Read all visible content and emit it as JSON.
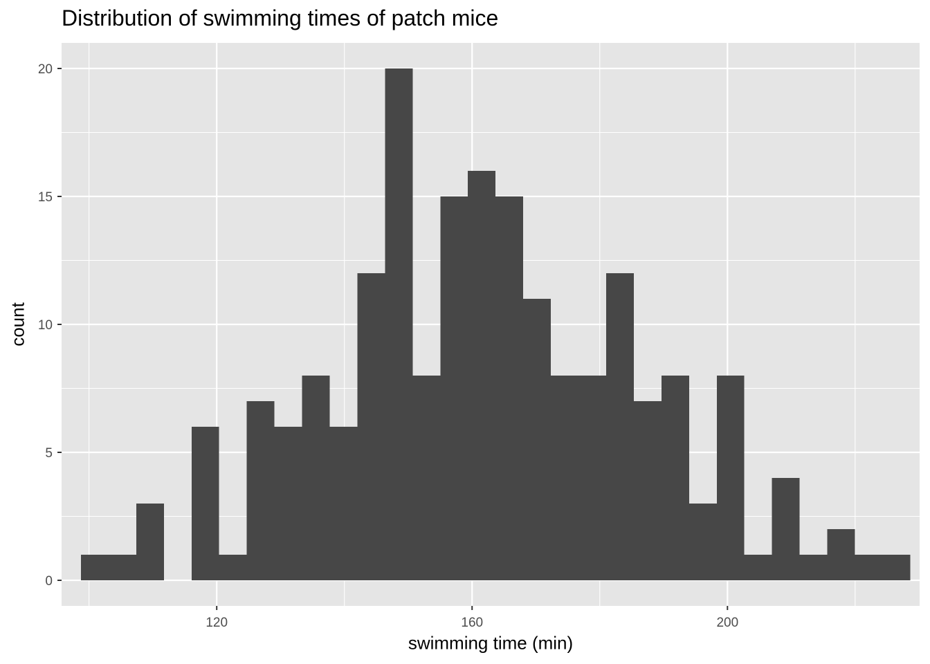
{
  "chart_data": {
    "type": "bar",
    "subtype": "histogram",
    "title": "Distribution of swimming times of patch mice",
    "xlabel": "swimming time (min)",
    "ylabel": "count",
    "xlim": [
      95.7,
      230.1
    ],
    "ylim": [
      -1.0,
      21.0
    ],
    "x_ticks": [
      120,
      160,
      200
    ],
    "y_ticks": [
      0,
      5,
      10,
      15,
      20
    ],
    "grid": true,
    "panel_background": "#e5e5e5",
    "grid_color": "#ffffff",
    "bar_color": "#474747",
    "bin_width": 4.33,
    "bins": [
      {
        "x_start": 98.73,
        "count": 1
      },
      {
        "x_start": 103.06,
        "count": 1
      },
      {
        "x_start": 107.39,
        "count": 3
      },
      {
        "x_start": 111.72,
        "count": 0
      },
      {
        "x_start": 116.05,
        "count": 6
      },
      {
        "x_start": 120.38,
        "count": 1
      },
      {
        "x_start": 124.71,
        "count": 7
      },
      {
        "x_start": 129.04,
        "count": 6
      },
      {
        "x_start": 133.37,
        "count": 8
      },
      {
        "x_start": 137.7,
        "count": 6
      },
      {
        "x_start": 142.03,
        "count": 12
      },
      {
        "x_start": 146.36,
        "count": 20
      },
      {
        "x_start": 150.69,
        "count": 8
      },
      {
        "x_start": 155.02,
        "count": 15
      },
      {
        "x_start": 159.35,
        "count": 16
      },
      {
        "x_start": 163.68,
        "count": 15
      },
      {
        "x_start": 168.01,
        "count": 11
      },
      {
        "x_start": 172.34,
        "count": 8
      },
      {
        "x_start": 176.67,
        "count": 8
      },
      {
        "x_start": 181.0,
        "count": 12
      },
      {
        "x_start": 185.33,
        "count": 7
      },
      {
        "x_start": 189.66,
        "count": 8
      },
      {
        "x_start": 193.99,
        "count": 3
      },
      {
        "x_start": 198.32,
        "count": 8
      },
      {
        "x_start": 202.65,
        "count": 1
      },
      {
        "x_start": 206.98,
        "count": 4
      },
      {
        "x_start": 211.31,
        "count": 1
      },
      {
        "x_start": 215.64,
        "count": 2
      },
      {
        "x_start": 219.97,
        "count": 1
      },
      {
        "x_start": 224.3,
        "count": 1
      }
    ]
  }
}
